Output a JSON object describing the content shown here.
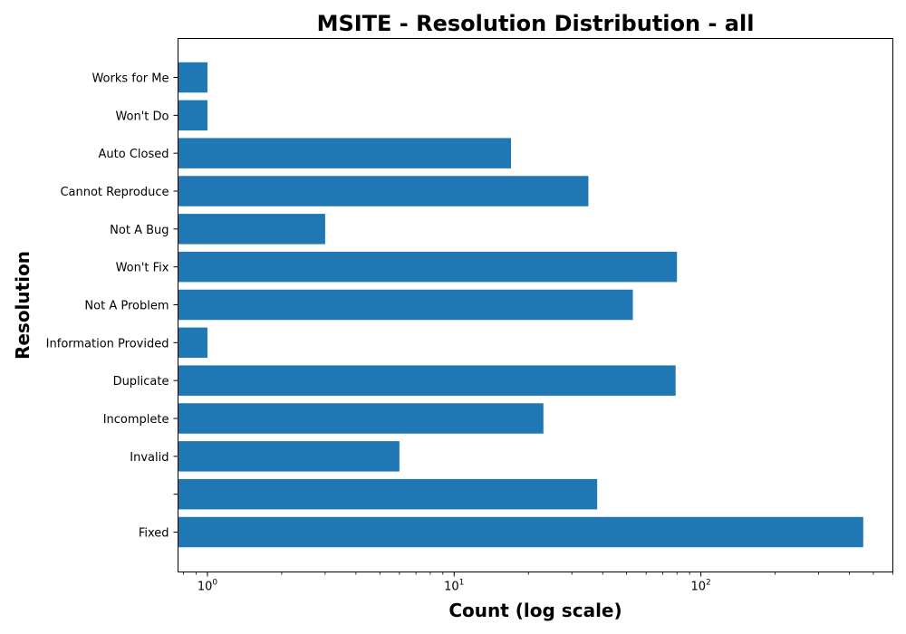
{
  "chart_data": {
    "type": "bar",
    "orientation": "horizontal",
    "title": "MSITE - Resolution Distribution - all",
    "xlabel": "Count (log scale)",
    "ylabel": "Resolution",
    "x_scale": "log",
    "xlim": [
      0.76,
      600
    ],
    "x_ticks": [
      {
        "base": "10",
        "exp": "0",
        "value": 1
      },
      {
        "base": "10",
        "exp": "1",
        "value": 10
      },
      {
        "base": "10",
        "exp": "2",
        "value": 100
      }
    ],
    "categories": [
      "Fixed",
      "",
      "Invalid",
      "Incomplete",
      "Duplicate",
      "Information Provided",
      "Not A Problem",
      "Won't Fix",
      "Not A Bug",
      "Cannot Reproduce",
      "Auto Closed",
      "Won't Do",
      "Works for Me"
    ],
    "values": [
      455,
      38,
      6,
      23,
      79,
      1,
      53,
      80,
      3,
      35,
      17,
      1,
      1
    ],
    "color": "#1f77b4",
    "grid": false,
    "legend": false
  }
}
